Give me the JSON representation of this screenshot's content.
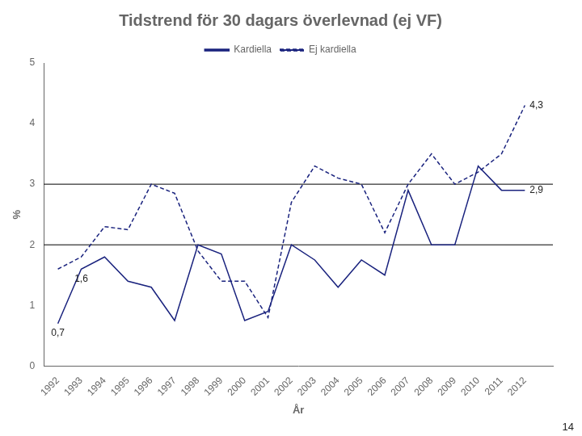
{
  "chart_data": {
    "type": "line",
    "title": "Tidstrend för 30 dagars överlevnad (ej VF)",
    "xlabel": "År",
    "ylabel": "%",
    "x": [
      1992,
      1993,
      1994,
      1995,
      1996,
      1997,
      1998,
      1999,
      2000,
      2001,
      2002,
      2003,
      2004,
      2005,
      2006,
      2007,
      2008,
      2009,
      2010,
      2011,
      2012
    ],
    "series": [
      {
        "name": "Kardiella",
        "color": "#1a237e",
        "line_style": "solid",
        "values": [
          0.7,
          1.6,
          1.8,
          1.4,
          1.3,
          0.75,
          2.0,
          1.85,
          0.75,
          0.9,
          2.0,
          1.75,
          1.3,
          1.75,
          1.5,
          2.9,
          2.0,
          2.0,
          3.3,
          2.9,
          2.9
        ]
      },
      {
        "name": "Ej kardiella",
        "color": "#1a237e",
        "line_style": "dashed",
        "values": [
          1.6,
          1.8,
          2.3,
          2.25,
          3.0,
          2.85,
          1.9,
          1.4,
          1.4,
          0.8,
          2.7,
          3.3,
          3.1,
          3.0,
          2.2,
          3.0,
          3.5,
          3.0,
          3.2,
          3.5,
          4.3
        ]
      }
    ],
    "xlim": [
      1991.4,
      2013.2
    ],
    "xticks": [
      1992,
      1993,
      1994,
      1995,
      1996,
      1997,
      1998,
      1999,
      2000,
      2001,
      2002,
      2003,
      2004,
      2005,
      2006,
      2007,
      2008,
      2009,
      2010,
      2011,
      2012
    ],
    "ylim": [
      0,
      5
    ],
    "yticks": [
      0,
      1,
      2,
      3,
      4,
      5
    ],
    "hlines": [
      2,
      3
    ],
    "grid": false,
    "legend": "top",
    "annotations": [
      {
        "text": "0,7",
        "x": 1992,
        "y": 0.7
      },
      {
        "text": "1,6",
        "x": 1993,
        "y": 1.6
      },
      {
        "text": "4,3",
        "x": 2012,
        "y": 4.3
      },
      {
        "text": "2,9",
        "x": 2012,
        "y": 2.9
      }
    ],
    "page_number": "14"
  }
}
